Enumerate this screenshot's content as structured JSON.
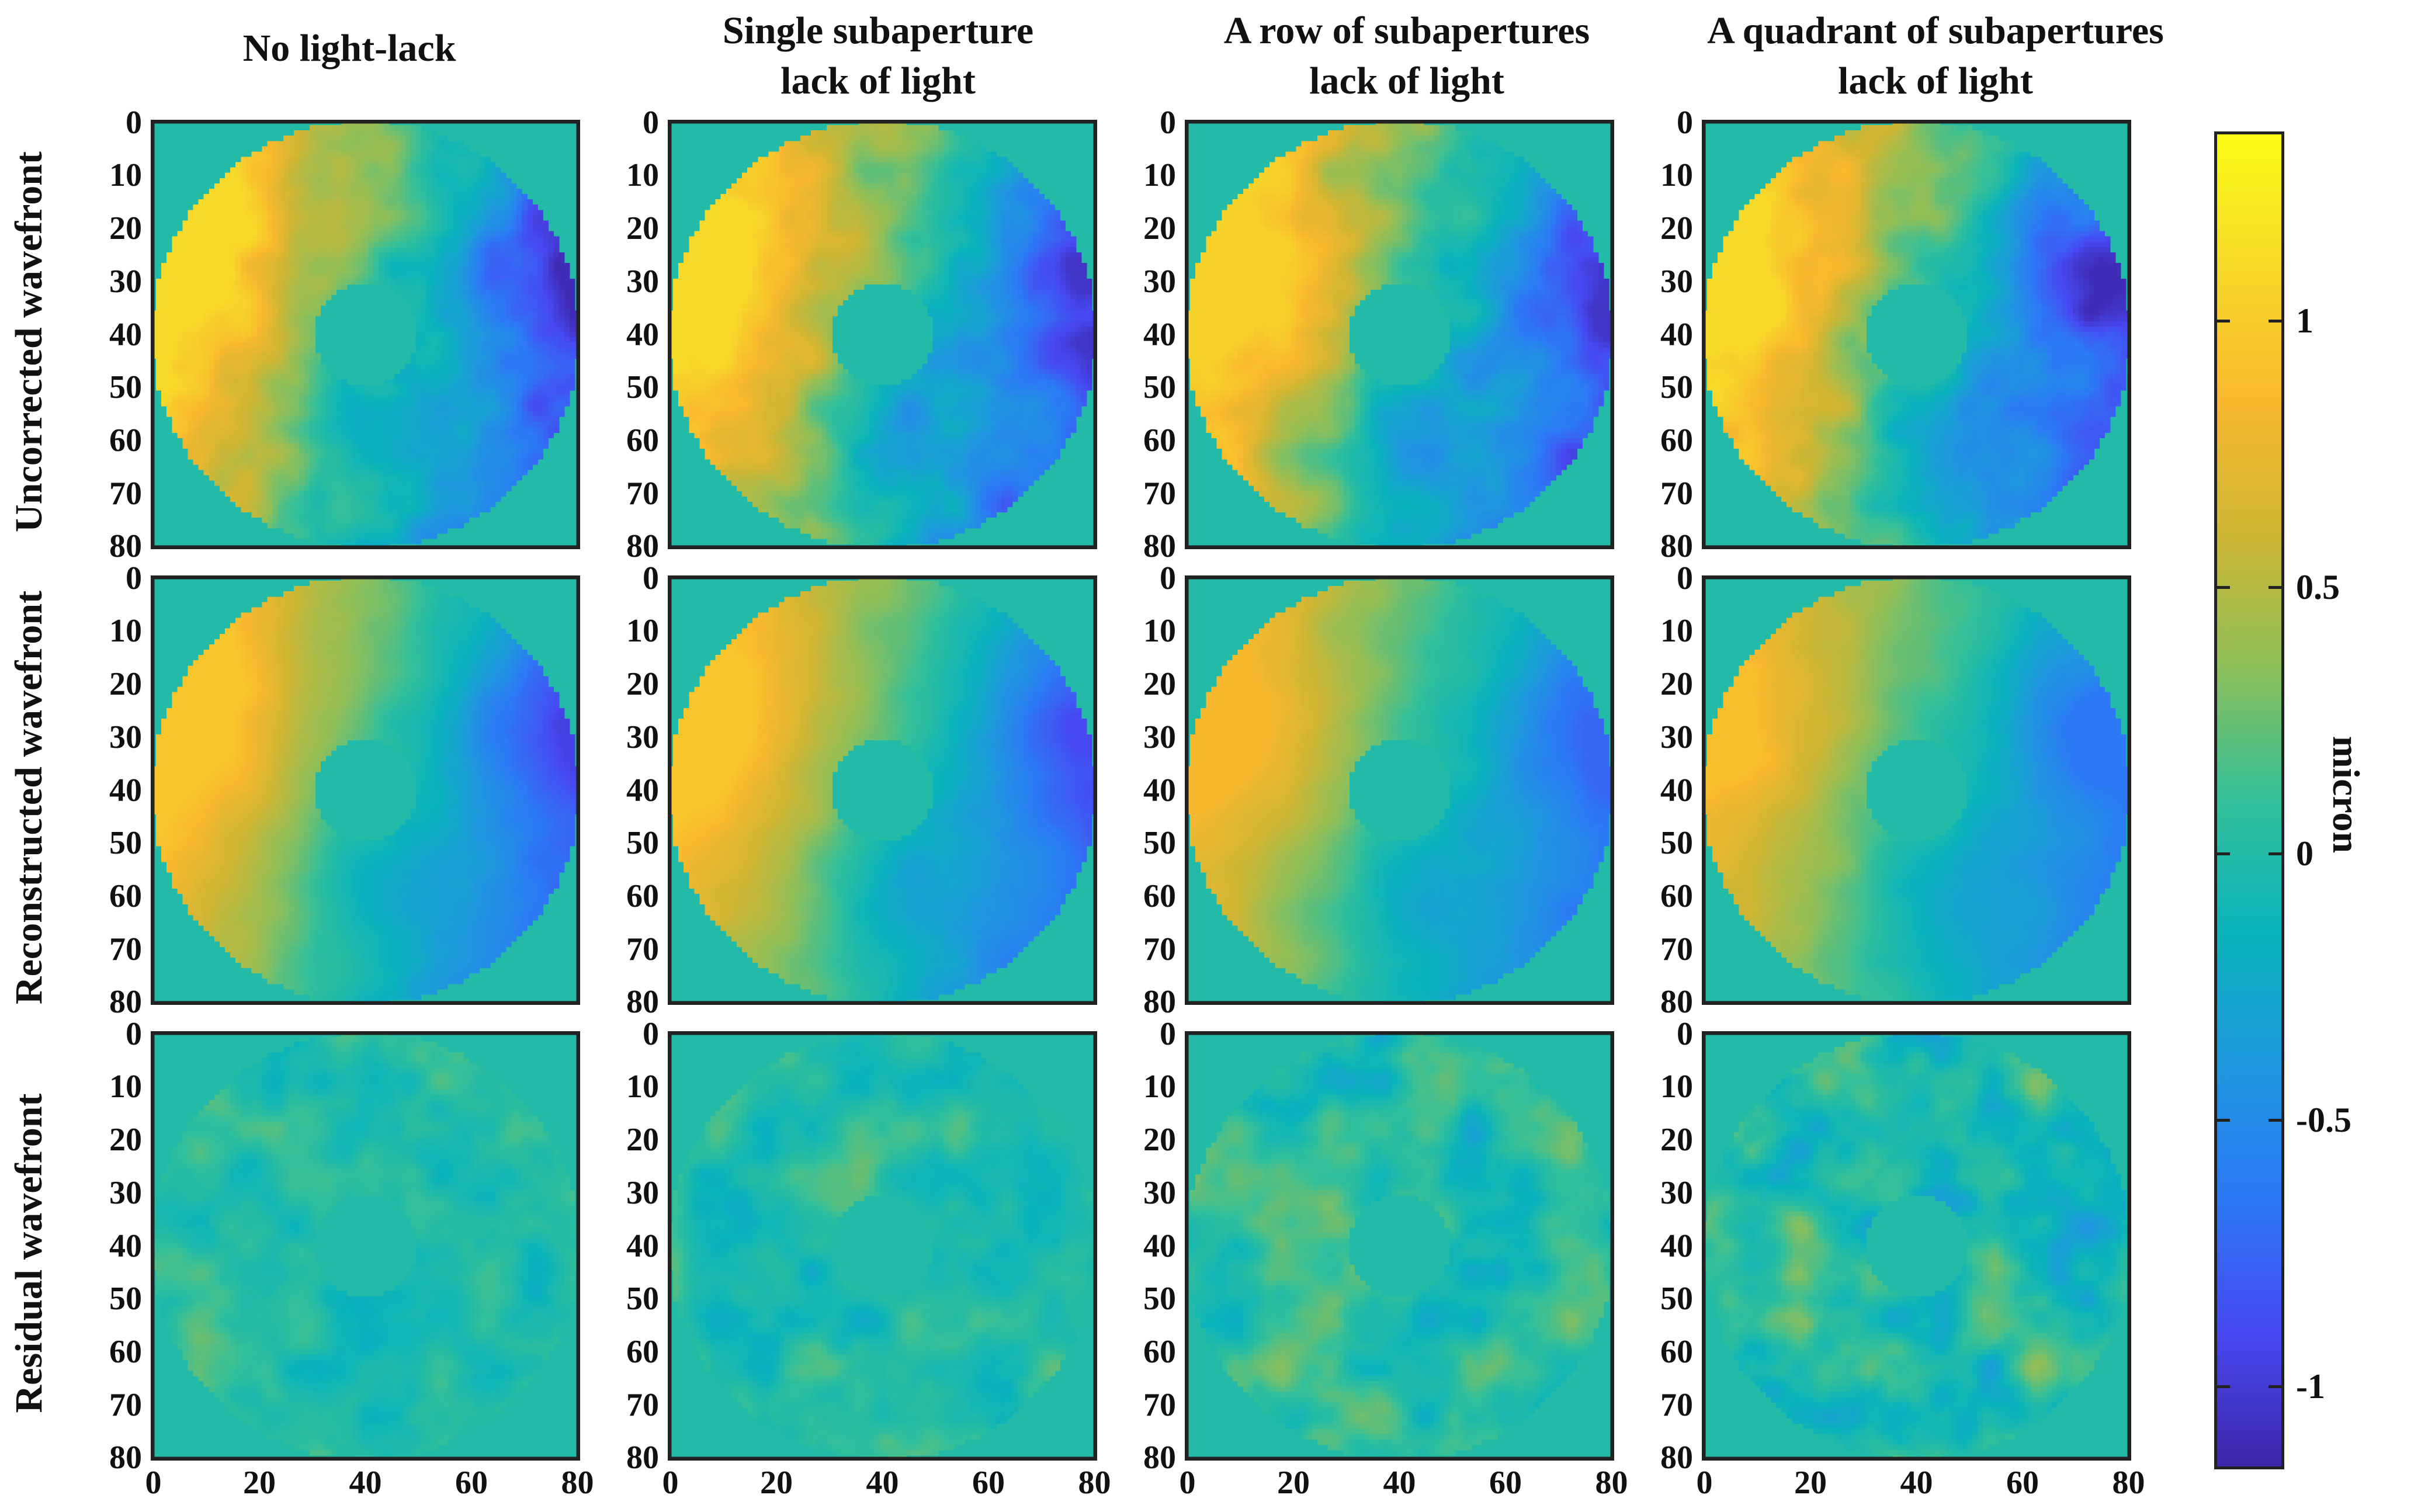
{
  "chart_data": {
    "type": "heatmap",
    "description_rows": [
      "Uncorrected wavefront",
      "Reconstructed wavefront",
      "Residual wavefront"
    ],
    "columns": [
      {
        "title_line1": "No light-lack",
        "title_line2": ""
      },
      {
        "title_line1": "Single subaperture",
        "title_line2": "lack of light"
      },
      {
        "title_line1": "A row of subapertures",
        "title_line2": "lack of light"
      },
      {
        "title_line1": "A quadrant of subapertures",
        "title_line2": "lack of light"
      }
    ],
    "rows": [
      "Uncorrected wavefront",
      "Reconstructed wavefront",
      "Residual wavefront"
    ],
    "x_ticks": [
      "0",
      "20",
      "40",
      "60",
      "80"
    ],
    "y_ticks": [
      "0",
      "10",
      "20",
      "30",
      "40",
      "50",
      "60",
      "70",
      "80"
    ],
    "x_range": [
      0,
      81
    ],
    "y_range": [
      0,
      81
    ],
    "pupil": {
      "center": [
        40,
        40
      ],
      "outer_radius": 40,
      "inner_radius": 10
    },
    "colorbar": {
      "label": "micron",
      "range": [
        -1.15,
        1.35
      ],
      "ticks": [
        "1",
        "0.5",
        "0",
        "-0.5",
        "-1"
      ],
      "tick_values": [
        1,
        0.5,
        0,
        -0.5,
        -1
      ],
      "colormap": [
        "#3e26a8",
        "#4748f1",
        "#2d78f6",
        "#1f97de",
        "#0ab3bb",
        "#33bf99",
        "#8ebf5a",
        "#ceb634",
        "#f8b82e",
        "#f7d92a",
        "#f9fb15"
      ]
    },
    "panel_peaks": [
      [
        {
          "warm": 1.1,
          "cool": -1.1
        },
        {
          "warm": 1.1,
          "cool": -1.05
        },
        {
          "warm": 1.05,
          "cool": -1.05
        },
        {
          "warm": 1.1,
          "cool": -1.1
        }
      ],
      [
        {
          "warm": 0.95,
          "cool": -0.95
        },
        {
          "warm": 0.95,
          "cool": -0.9
        },
        {
          "warm": 0.85,
          "cool": -0.75
        },
        {
          "warm": 0.9,
          "cool": -0.65
        }
      ],
      [
        {
          "warm": 0.3,
          "cool": -0.25
        },
        {
          "warm": 0.3,
          "cool": -0.25
        },
        {
          "warm": 0.4,
          "cool": -0.3
        },
        {
          "warm": 0.5,
          "cool": -0.35
        }
      ]
    ]
  }
}
